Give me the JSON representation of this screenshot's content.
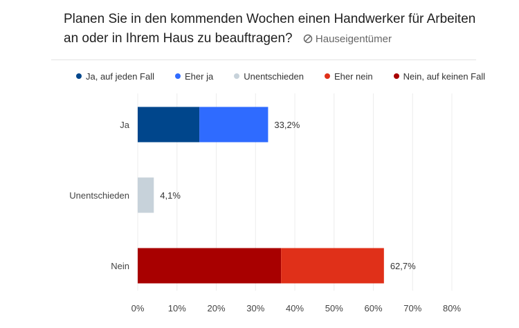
{
  "header": {
    "title": "Planen Sie in den kommenden Wochen einen Handwerker für Arbeiten an oder in Ihrem Haus zu beauftragen?",
    "tag_icon": "filter-circle-icon",
    "tag_label": "Hauseigentümer"
  },
  "chart_data": {
    "type": "bar",
    "orientation": "horizontal",
    "stacked": true,
    "title": "Planen Sie in den kommenden Wochen einen Handwerker für Arbeiten an oder in Ihrem Haus zu beauftragen?",
    "subtitle": "Hauseigentümer",
    "xlabel": "",
    "ylabel": "",
    "categories": [
      "Ja",
      "Unentschieden",
      "Nein"
    ],
    "series": [
      {
        "name": "Ja, auf jeden Fall",
        "color": "#00468c",
        "values": [
          15.7,
          0,
          0
        ]
      },
      {
        "name": "Eher ja",
        "color": "#2f6bff",
        "values": [
          17.5,
          0,
          0
        ]
      },
      {
        "name": "Unentschieden",
        "color": "#c7d2da",
        "values": [
          0,
          4.1,
          0
        ]
      },
      {
        "name": "Eher nein",
        "color": "#e03019",
        "values": [
          0,
          0,
          26.2
        ]
      },
      {
        "name": "Nein, auf keinen Fall",
        "color": "#a80000",
        "values": [
          0,
          0,
          36.5
        ]
      }
    ],
    "stack_order": [
      [
        "Ja, auf jeden Fall",
        "Eher ja"
      ],
      [
        "Unentschieden"
      ],
      [
        "Nein, auf keinen Fall",
        "Eher nein"
      ]
    ],
    "totals": [
      33.2,
      4.1,
      62.7
    ],
    "total_labels": [
      "33,2%",
      "4,1%",
      "62,7%"
    ],
    "xlim": [
      0,
      80
    ],
    "xticks": [
      0,
      10,
      20,
      30,
      40,
      50,
      60,
      70,
      80
    ],
    "xtick_labels": [
      "0%",
      "10%",
      "20%",
      "30%",
      "40%",
      "50%",
      "60%",
      "70%",
      "80%"
    ],
    "grid": true,
    "legend_position": "top"
  }
}
